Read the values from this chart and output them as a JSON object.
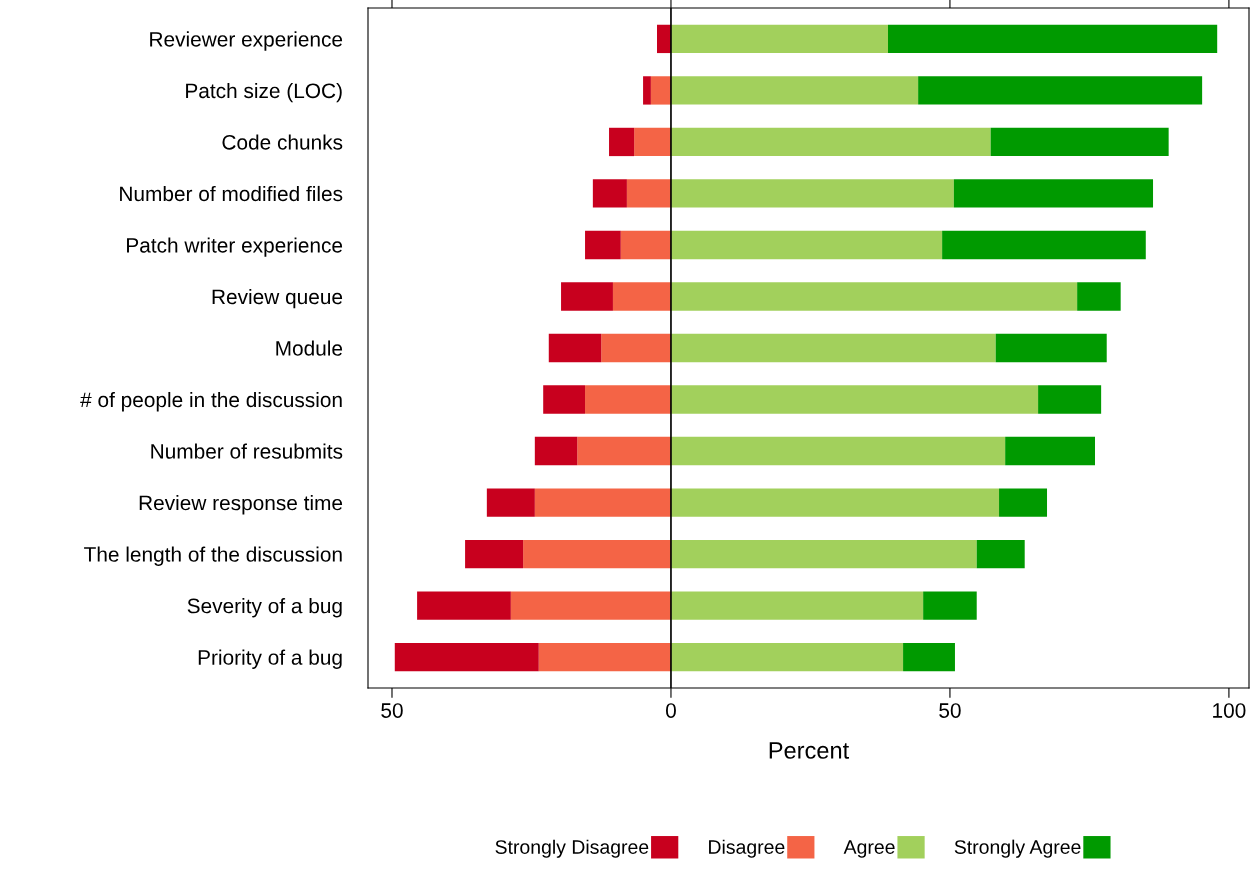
{
  "chart_data": {
    "type": "bar",
    "orientation": "horizontal",
    "stacked": true,
    "xlabel": "Percent",
    "categories": [
      "Reviewer experience",
      "Patch size (LOC)",
      "Code chunks",
      "Number of modified files",
      "Patch writer experience",
      "Review queue",
      "Module",
      "# of people in the discussion",
      "Number of resubmits",
      "Review response time",
      "The length of the discussion",
      "Severity of a bug",
      "Priority of a bug"
    ],
    "series": [
      {
        "name": "Disagree",
        "color": "#f46446",
        "values": [
          0,
          -3.6,
          -6.6,
          -7.9,
          -9.0,
          -10.4,
          -12.5,
          -15.4,
          -16.8,
          -24.4,
          -26.5,
          -28.7,
          -23.7
        ]
      },
      {
        "name": "Strongly Disagree",
        "color": "#c8001e",
        "values": [
          -2.5,
          -1.4,
          -4.5,
          -6.1,
          -6.4,
          -9.3,
          -9.4,
          -7.5,
          -7.6,
          -8.6,
          -10.4,
          -16.8,
          -25.8
        ]
      },
      {
        "name": "Agree",
        "color": "#a2d05c",
        "values": [
          38.9,
          44.3,
          57.3,
          50.7,
          48.6,
          72.8,
          58.2,
          65.8,
          59.9,
          58.8,
          54.8,
          45.2,
          41.6
        ]
      },
      {
        "name": "Strongly Agree",
        "color": "#009a00",
        "values": [
          59.0,
          50.9,
          31.9,
          35.7,
          36.5,
          7.8,
          19.9,
          11.3,
          16.1,
          8.6,
          8.6,
          9.6,
          9.3
        ]
      }
    ],
    "xlim": [
      -54.3,
      103.6
    ],
    "xticks": [
      {
        "value": -50,
        "label": "50"
      },
      0,
      50,
      100
    ],
    "ref_lines": [
      {
        "axis": "x",
        "value": 0,
        "color": "#000000"
      }
    ],
    "legend": "bottom",
    "grid": false
  }
}
